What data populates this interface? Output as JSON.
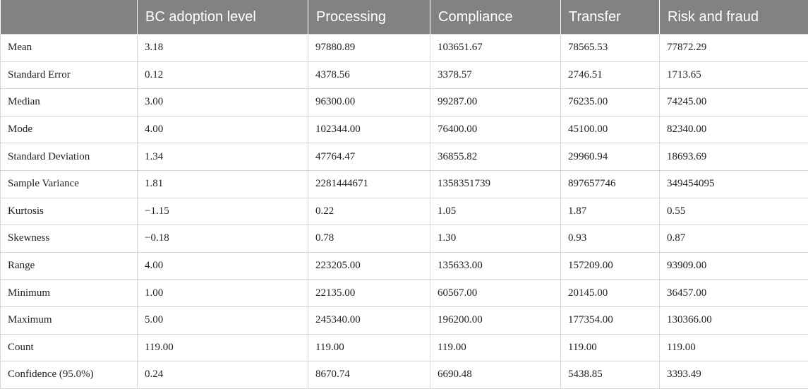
{
  "table": {
    "headers": [
      "",
      "BC adoption level",
      "Processing",
      "Compliance",
      "Transfer",
      "Risk and fraud"
    ],
    "rows": [
      [
        "Mean",
        "3.18",
        "97880.89",
        "103651.67",
        "78565.53",
        "77872.29"
      ],
      [
        "Standard Error",
        "0.12",
        "4378.56",
        "3378.57",
        "2746.51",
        "1713.65"
      ],
      [
        "Median",
        "3.00",
        "96300.00",
        "99287.00",
        "76235.00",
        "74245.00"
      ],
      [
        "Mode",
        "4.00",
        "102344.00",
        "76400.00",
        "45100.00",
        "82340.00"
      ],
      [
        "Standard Deviation",
        "1.34",
        "47764.47",
        "36855.82",
        "29960.94",
        "18693.69"
      ],
      [
        "Sample Variance",
        "1.81",
        "2281444671",
        "1358351739",
        "897657746",
        "349454095"
      ],
      [
        "Kurtosis",
        "−1.15",
        "0.22",
        "1.05",
        "1.87",
        "0.55"
      ],
      [
        "Skewness",
        "−0.18",
        "0.78",
        "1.30",
        "0.93",
        "0.87"
      ],
      [
        "Range",
        "4.00",
        "223205.00",
        "135633.00",
        "157209.00",
        "93909.00"
      ],
      [
        "Minimum",
        "1.00",
        "22135.00",
        "60567.00",
        "20145.00",
        "36457.00"
      ],
      [
        "Maximum",
        "5.00",
        "245340.00",
        "196200.00",
        "177354.00",
        "130366.00"
      ],
      [
        "Count",
        "119.00",
        "119.00",
        "119.00",
        "119.00",
        "119.00"
      ],
      [
        "Confidence (95.0%)",
        "0.24",
        "8670.74",
        "6690.48",
        "5438.85",
        "3393.49"
      ]
    ]
  },
  "colors": {
    "header_bg": "#828282",
    "header_text": "#ffffff",
    "border": "#d6d6d6"
  }
}
